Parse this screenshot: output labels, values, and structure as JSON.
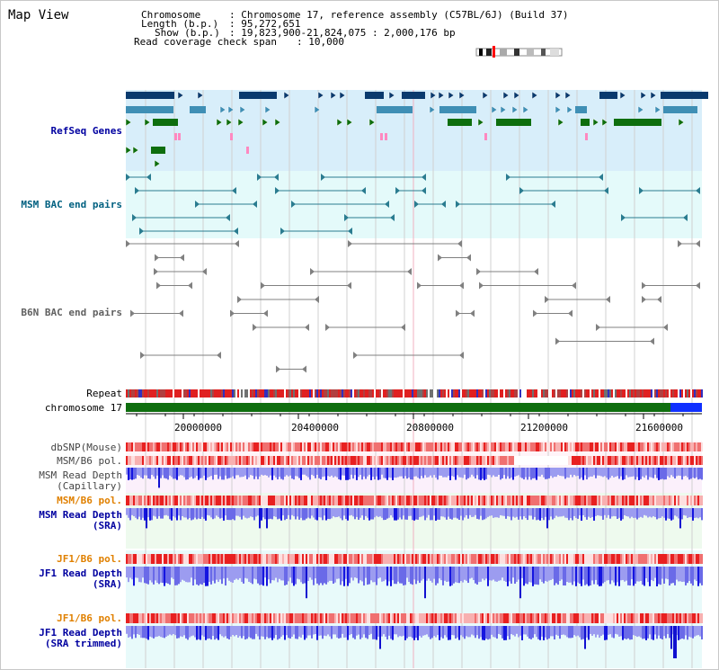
{
  "header": {
    "view_title": "Map View",
    "chromosome_key": "Chromosome",
    "chromosome_value": ": Chromosome 17, reference assembly (C57BL/6J) (Build 37)",
    "length_key": "Length (b.p.)",
    "length_value": ": 95,272,651",
    "show_key": "Show (b.p.)",
    "show_value": ": 19,823,900-21,824,075 : 2,000,176 bp",
    "coverage_key": "Read coverage check span",
    "coverage_value": ": 10,000"
  },
  "tracks": {
    "refseq": "RefSeq Genes",
    "msm_bac": "MSM BAC end pairs",
    "b6n_bac": "B6N BAC end pairs",
    "repeat": "Repeat",
    "chromosome": "chromosome 17",
    "dbsnp": "dbSNP(Mouse)",
    "msm_b6_pol_1": "MSM/B6 pol.",
    "msm_read_depth_cap_1": "MSM Read Depth",
    "msm_read_depth_cap_2": "(Capillary)",
    "msm_b6_pol_2": "MSM/B6 pol.",
    "msm_read_depth_sra_1": "MSM Read Depth",
    "msm_read_depth_sra_2": "(SRA)",
    "jf1_b6_pol_1": "JF1/B6 pol.",
    "jf1_read_depth_sra_1": "JF1 Read Depth",
    "jf1_read_depth_sra_2": "(SRA)",
    "jf1_b6_pol_2": "JF1/B6 pol.",
    "jf1_read_depth_trim_1": "JF1 Read Depth",
    "jf1_read_depth_trim_2": "(SRA trimmed)"
  },
  "axis": {
    "ticks": [
      "20000000",
      "20400000",
      "20800000",
      "21200000",
      "21600000"
    ]
  },
  "colors": {
    "refseq_bg": "#d8eefa",
    "bac_bg": "#e4fafa",
    "gene_dark": "#0a3a6e",
    "gene_mid": "#3f8fb5",
    "gene_green": "#0e6e0e",
    "msm_label": "#006080",
    "dark_blue_label": "#0000a0",
    "orange_label": "#e08000",
    "chromosome_bar": "#0e6e0e",
    "depth_blue": "#6a6ae8"
  }
}
